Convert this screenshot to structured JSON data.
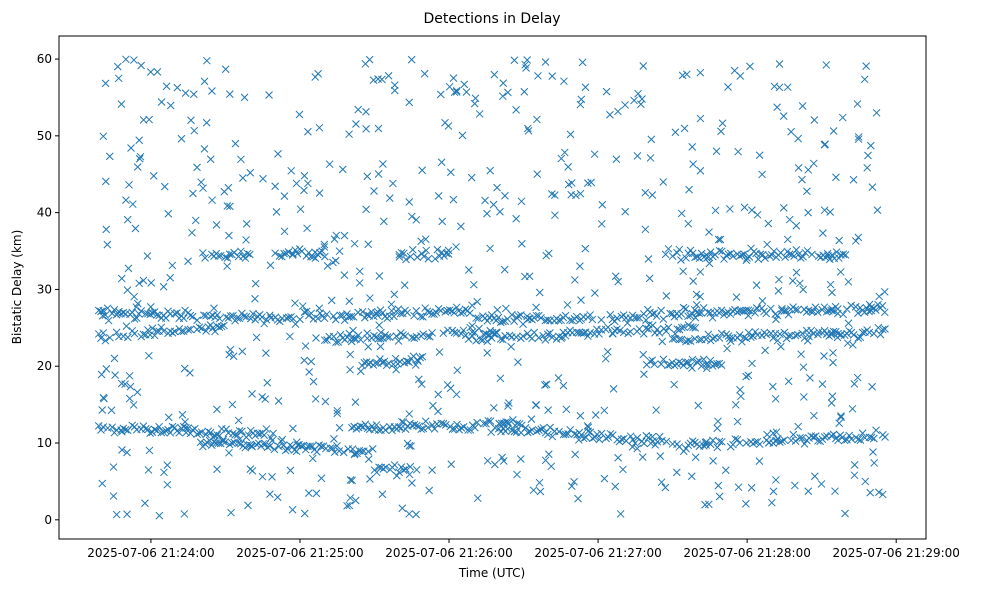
{
  "chart_data": {
    "type": "scatter",
    "title": "Detections in Delay",
    "xlabel": "Time (UTC)",
    "ylabel": "Bistatic Delay (km)",
    "marker": "x",
    "color": "#1f77b4",
    "grid": false,
    "x_start": "2025-07-06 21:23:39",
    "x_end": "2025-07-06 21:28:56",
    "xlim": [
      "2025-07-06 21:23:23",
      "2025-07-06 21:29:12"
    ],
    "ylim": [
      -2.5,
      63
    ],
    "x_ticks": [
      "2025-07-06 21:24:00",
      "2025-07-06 21:25:00",
      "2025-07-06 21:26:00",
      "2025-07-06 21:27:00",
      "2025-07-06 21:28:00",
      "2025-07-06 21:29:00"
    ],
    "y_ticks": [
      "0",
      "10",
      "20",
      "30",
      "40",
      "50",
      "60"
    ],
    "tracks": [
      {
        "start": "2025-07-06 21:23:39",
        "end": "2025-07-06 21:25:00",
        "from": 27.0,
        "to": 26.0
      },
      {
        "start": "2025-07-06 21:25:00",
        "end": "2025-07-06 21:26:10",
        "from": 26.5,
        "to": 27.2
      },
      {
        "start": "2025-07-06 21:26:10",
        "end": "2025-07-06 21:27:20",
        "from": 26.0,
        "to": 26.5
      },
      {
        "start": "2025-07-06 21:27:20",
        "end": "2025-07-06 21:28:56",
        "from": 26.8,
        "to": 27.5
      },
      {
        "start": "2025-07-06 21:23:39",
        "end": "2025-07-06 21:24:30",
        "from": 24.0,
        "to": 25.0
      },
      {
        "start": "2025-07-06 21:25:10",
        "end": "2025-07-06 21:26:20",
        "from": 23.5,
        "to": 24.5
      },
      {
        "start": "2025-07-06 21:26:10",
        "end": "2025-07-06 21:27:40",
        "from": 23.5,
        "to": 25.0
      },
      {
        "start": "2025-07-06 21:27:30",
        "end": "2025-07-06 21:28:56",
        "from": 23.5,
        "to": 24.5
      },
      {
        "start": "2025-07-06 21:23:39",
        "end": "2025-07-06 21:24:50",
        "from": 12.0,
        "to": 11.0
      },
      {
        "start": "2025-07-06 21:24:20",
        "end": "2025-07-06 21:25:30",
        "from": 10.0,
        "to": 9.0
      },
      {
        "start": "2025-07-06 21:25:20",
        "end": "2025-07-06 21:26:30",
        "from": 12.0,
        "to": 12.5
      },
      {
        "start": "2025-07-06 21:26:20",
        "end": "2025-07-06 21:27:30",
        "from": 12.0,
        "to": 10.0
      },
      {
        "start": "2025-07-06 21:27:30",
        "end": "2025-07-06 21:28:56",
        "from": 9.5,
        "to": 11.0
      },
      {
        "start": "2025-07-06 21:24:20",
        "end": "2025-07-06 21:24:40",
        "from": 34.5,
        "to": 34.5
      },
      {
        "start": "2025-07-06 21:24:50",
        "end": "2025-07-06 21:25:10",
        "from": 34.8,
        "to": 34.8
      },
      {
        "start": "2025-07-06 21:25:40",
        "end": "2025-07-06 21:26:00",
        "from": 34.5,
        "to": 34.5
      },
      {
        "start": "2025-07-06 21:27:30",
        "end": "2025-07-06 21:28:00",
        "from": 34.5,
        "to": 34.5
      },
      {
        "start": "2025-07-06 21:28:00",
        "end": "2025-07-06 21:28:40",
        "from": 34.5,
        "to": 34.5
      },
      {
        "start": "2025-07-06 21:25:25",
        "end": "2025-07-06 21:25:50",
        "from": 20.5,
        "to": 20.8
      },
      {
        "start": "2025-07-06 21:27:20",
        "end": "2025-07-06 21:27:50",
        "from": 20.5,
        "to": 20.5
      },
      {
        "start": "2025-07-06 21:25:30",
        "end": "2025-07-06 21:25:45",
        "from": 6.5,
        "to": 6.5
      }
    ],
    "scatter_range": [
      0.5,
      60
    ],
    "scatter_count": 700
  }
}
